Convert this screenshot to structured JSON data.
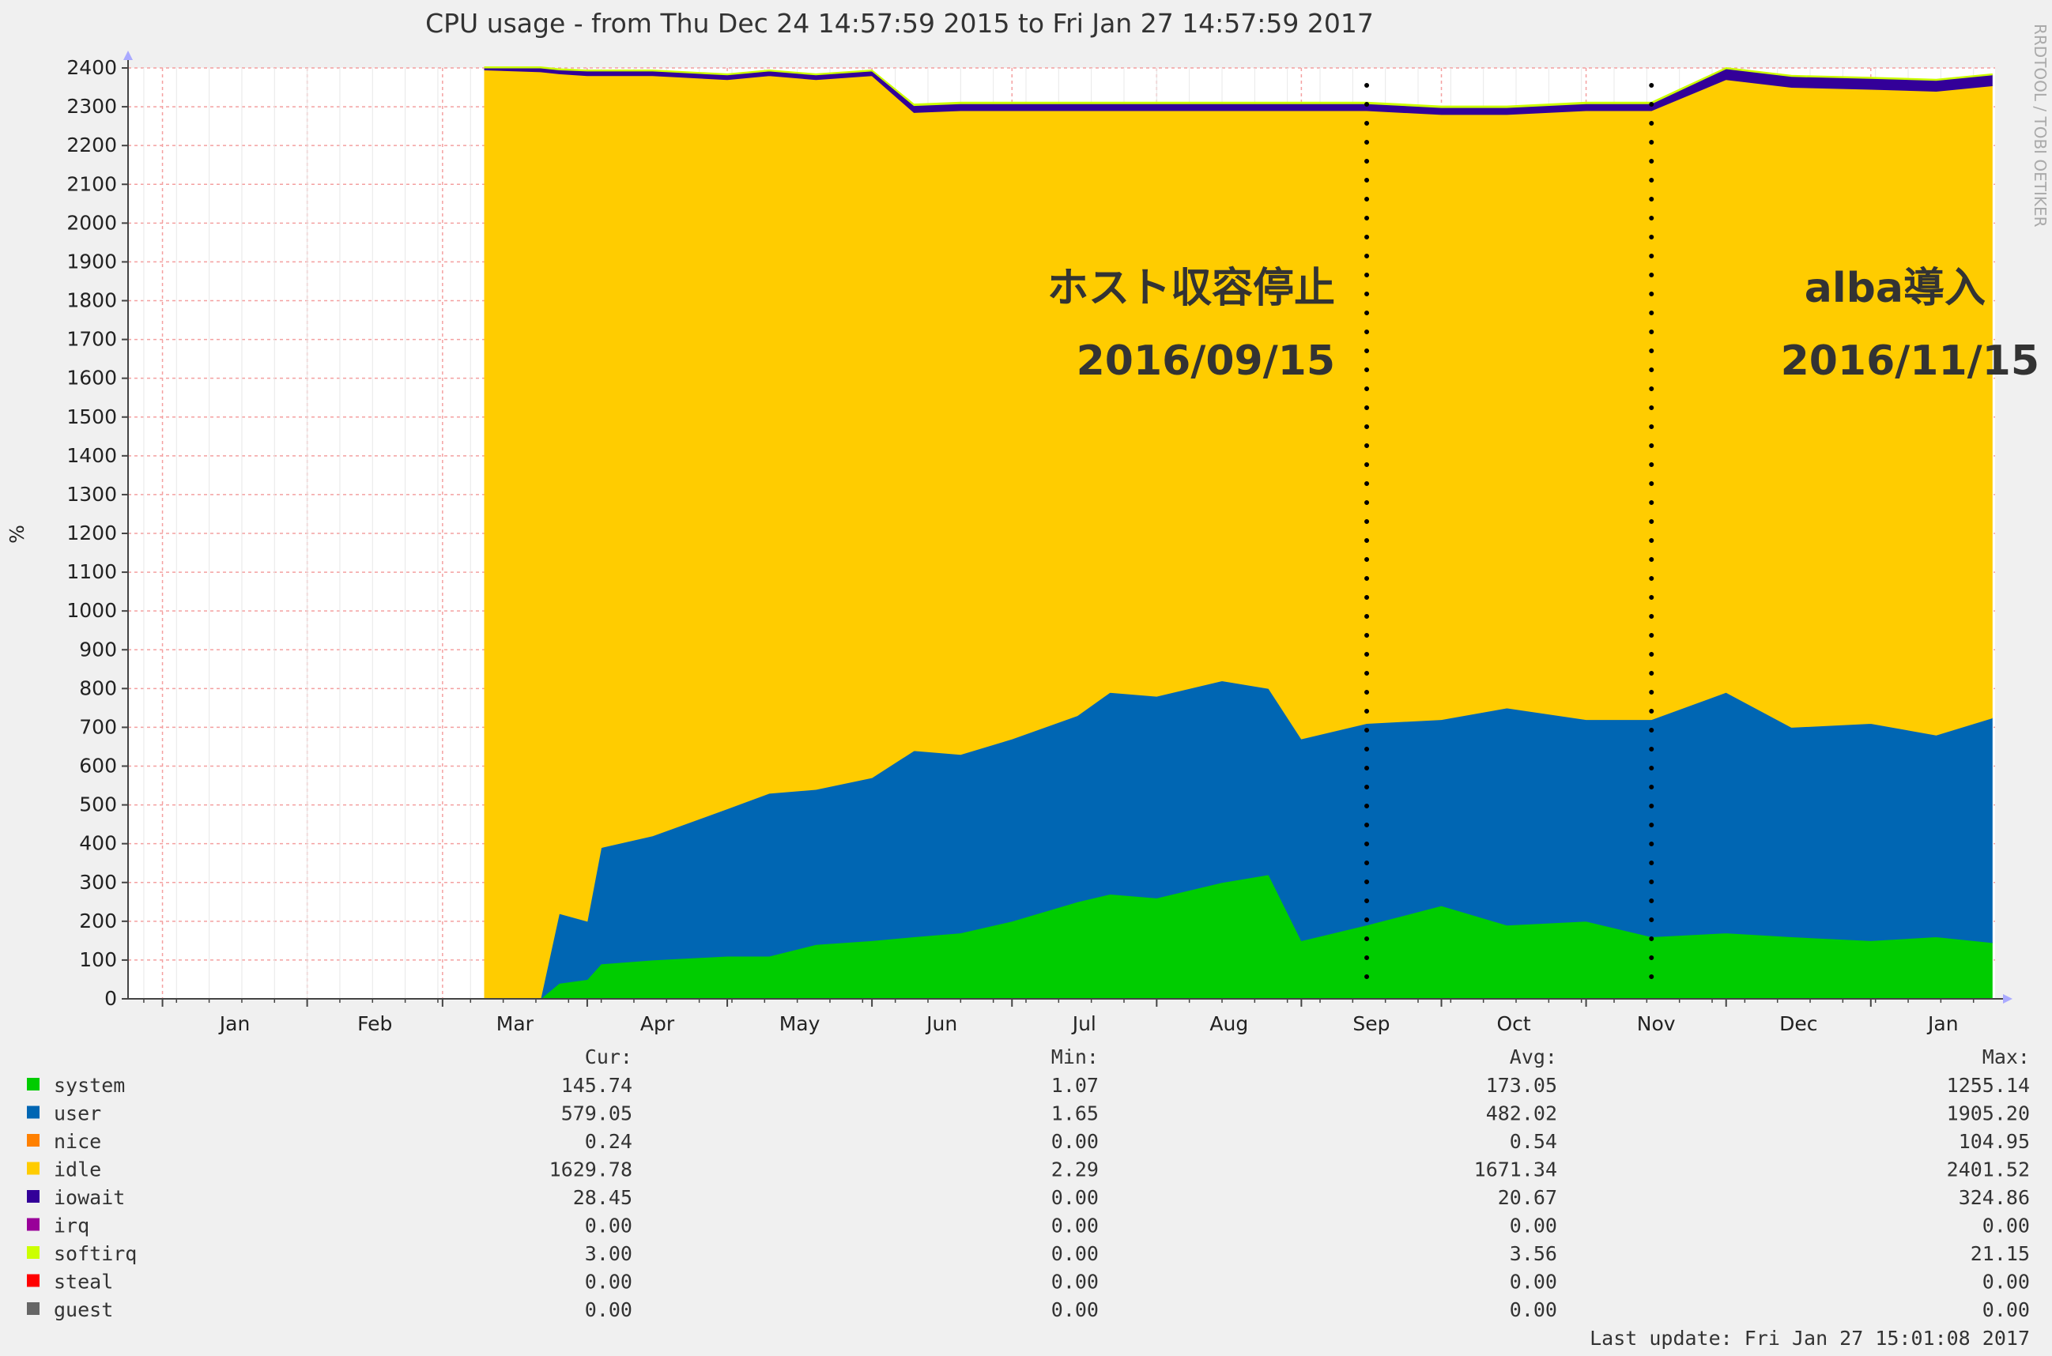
{
  "chart_data": {
    "type": "area",
    "title": "CPU usage - from Thu Dec 24 14:57:59 2015 to Fri Jan 27 14:57:59 2017",
    "ylabel": "%",
    "side_label": "RRDTOOL / TOBI OETIKER",
    "ylim": [
      0,
      2400
    ],
    "yticks": [
      0,
      100,
      200,
      300,
      400,
      500,
      600,
      700,
      800,
      900,
      1000,
      1100,
      1200,
      1300,
      1400,
      1500,
      1600,
      1700,
      1800,
      1900,
      2000,
      2100,
      2200,
      2300,
      2400
    ],
    "x_labels": [
      "Jan",
      "Feb",
      "Mar",
      "Apr",
      "May",
      "Jun",
      "Jul",
      "Aug",
      "Sep",
      "Oct",
      "Nov",
      "Dec",
      "Jan"
    ],
    "x": [
      "2016-03-10",
      "2016-03-22",
      "2016-03-26",
      "2016-04-01",
      "2016-04-04",
      "2016-04-15",
      "2016-05-01",
      "2016-05-10",
      "2016-05-20",
      "2016-06-01",
      "2016-06-10",
      "2016-06-20",
      "2016-07-01",
      "2016-07-15",
      "2016-07-22",
      "2016-08-01",
      "2016-08-15",
      "2016-08-25",
      "2016-09-01",
      "2016-09-15",
      "2016-10-01",
      "2016-10-15",
      "2016-11-01",
      "2016-11-15",
      "2016-12-01",
      "2016-12-15",
      "2017-01-01",
      "2017-01-15",
      "2017-01-27"
    ],
    "series": [
      {
        "name": "system",
        "color": "#00cc00",
        "values": [
          0,
          0,
          40,
          50,
          90,
          100,
          110,
          110,
          140,
          150,
          160,
          170,
          200,
          250,
          270,
          260,
          300,
          320,
          150,
          190,
          240,
          190,
          200,
          160,
          170,
          160,
          150,
          160,
          145
        ]
      },
      {
        "name": "user",
        "color": "#0066b3",
        "values": [
          0,
          0,
          180,
          150,
          300,
          320,
          380,
          420,
          400,
          420,
          480,
          460,
          470,
          480,
          520,
          520,
          520,
          480,
          520,
          520,
          480,
          560,
          520,
          560,
          620,
          540,
          560,
          520,
          579
        ]
      },
      {
        "name": "nice",
        "color": "#ff8000",
        "values": [
          0,
          0,
          0,
          0,
          0,
          0,
          0,
          0,
          0,
          0,
          0,
          0,
          0,
          0,
          0,
          0,
          0,
          0,
          0,
          0,
          0,
          0,
          0,
          0,
          0,
          0,
          0,
          0,
          0
        ]
      },
      {
        "name": "idle",
        "color": "#ffcc00",
        "values": [
          2395,
          2390,
          2165,
          2180,
          1990,
          1960,
          1880,
          1850,
          1830,
          1810,
          1645,
          1660,
          1620,
          1560,
          1500,
          1510,
          1470,
          1490,
          1620,
          1580,
          1560,
          1530,
          1570,
          1570,
          1580,
          1650,
          1635,
          1660,
          1630
        ]
      },
      {
        "name": "iowait",
        "color": "#330099",
        "values": [
          5,
          10,
          10,
          12,
          12,
          12,
          12,
          12,
          12,
          12,
          18,
          18,
          18,
          18,
          18,
          18,
          18,
          18,
          18,
          18,
          18,
          18,
          18,
          18,
          28,
          28,
          28,
          28,
          28
        ]
      },
      {
        "name": "softirq",
        "color": "#ccff00",
        "values": [
          3,
          3,
          3,
          3,
          3,
          3,
          3,
          3,
          3,
          3,
          4,
          4,
          4,
          4,
          4,
          4,
          4,
          4,
          4,
          4,
          4,
          4,
          4,
          4,
          3,
          3,
          3,
          3,
          3
        ]
      }
    ],
    "annotations": [
      {
        "date": "2016-09-15",
        "label": "ホスト収容停止",
        "date_label": "2016/09/15"
      },
      {
        "date": "2016-11-15",
        "label": "alba導入",
        "date_label": "2016/11/15"
      }
    ],
    "legend": {
      "headers": [
        "Cur:",
        "Min:",
        "Avg:",
        "Max:"
      ],
      "rows": [
        {
          "name": "system",
          "color": "#00cc00",
          "cur": "145.74",
          "min": "1.07",
          "avg": "173.05",
          "max": "1255.14"
        },
        {
          "name": "user",
          "color": "#0066b3",
          "cur": "579.05",
          "min": "1.65",
          "avg": "482.02",
          "max": "1905.20"
        },
        {
          "name": "nice",
          "color": "#ff8000",
          "cur": "0.24",
          "min": "0.00",
          "avg": "0.54",
          "max": "104.95"
        },
        {
          "name": "idle",
          "color": "#ffcc00",
          "cur": "1629.78",
          "min": "2.29",
          "avg": "1671.34",
          "max": "2401.52"
        },
        {
          "name": "iowait",
          "color": "#330099",
          "cur": "28.45",
          "min": "0.00",
          "avg": "20.67",
          "max": "324.86"
        },
        {
          "name": "irq",
          "color": "#990099",
          "cur": "0.00",
          "min": "0.00",
          "avg": "0.00",
          "max": "0.00"
        },
        {
          "name": "softirq",
          "color": "#ccff00",
          "cur": "3.00",
          "min": "0.00",
          "avg": "3.56",
          "max": "21.15"
        },
        {
          "name": "steal",
          "color": "#ff0000",
          "cur": "0.00",
          "min": "0.00",
          "avg": "0.00",
          "max": "0.00"
        },
        {
          "name": "guest",
          "color": "#666666",
          "cur": "0.00",
          "min": "0.00",
          "avg": "0.00",
          "max": "0.00"
        }
      ]
    },
    "last_update": "Last update: Fri Jan 27 15:01:08 2017"
  }
}
